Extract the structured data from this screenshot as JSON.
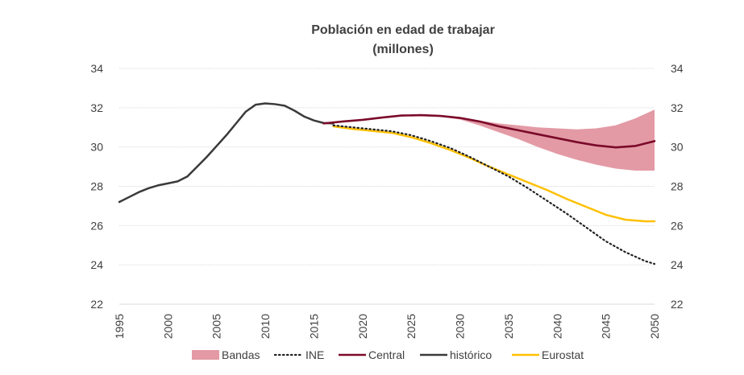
{
  "chart_data": {
    "type": "line",
    "title": "Población en edad de trabajar",
    "subtitle": "(millones)",
    "xlabel": "",
    "ylabel": "",
    "xlim": [
      1995,
      2050
    ],
    "ylim": [
      22,
      34
    ],
    "y_ticks": [
      22,
      24,
      26,
      28,
      30,
      32,
      34
    ],
    "x_ticks": [
      1995,
      2000,
      2005,
      2010,
      2015,
      2020,
      2025,
      2030,
      2035,
      2040,
      2045,
      2050
    ],
    "grid": true,
    "secondary_y_axis": true,
    "legend_position": "bottom",
    "legend": [
      "Bandas",
      "INE",
      "Central",
      "histórico",
      "Eurostat"
    ],
    "colors": {
      "bandas": "#e39aa5",
      "ine": "#222222",
      "central": "#7b0a2a",
      "historico": "#3a3a3a",
      "eurostat": "#ffc000",
      "grid": "#d9d9d9",
      "text": "#404040"
    },
    "series": [
      {
        "name": "histórico",
        "style": "solid",
        "x": [
          1995,
          1996,
          1997,
          1998,
          1999,
          2000,
          2001,
          2002,
          2003,
          2004,
          2005,
          2006,
          2007,
          2008,
          2009,
          2010,
          2011,
          2012,
          2013,
          2014,
          2015,
          2016,
          2017
        ],
        "values": [
          27.2,
          27.45,
          27.7,
          27.9,
          28.05,
          28.15,
          28.25,
          28.5,
          29.0,
          29.5,
          30.05,
          30.6,
          31.2,
          31.8,
          32.15,
          32.22,
          32.18,
          32.1,
          31.85,
          31.55,
          31.35,
          31.22,
          31.2
        ]
      },
      {
        "name": "Central",
        "style": "solid",
        "x": [
          2016,
          2018,
          2020,
          2022,
          2024,
          2026,
          2028,
          2030,
          2032,
          2034,
          2036,
          2038,
          2040,
          2042,
          2044,
          2046,
          2048,
          2050
        ],
        "values": [
          31.2,
          31.3,
          31.38,
          31.5,
          31.6,
          31.62,
          31.58,
          31.48,
          31.3,
          31.05,
          30.85,
          30.65,
          30.45,
          30.25,
          30.08,
          29.98,
          30.05,
          30.3
        ]
      },
      {
        "name": "INE",
        "style": "dotted",
        "x": [
          2017,
          2019,
          2021,
          2023,
          2025,
          2027,
          2029,
          2031,
          2033,
          2035,
          2037,
          2039,
          2041,
          2043,
          2045,
          2047,
          2049,
          2050
        ],
        "values": [
          31.1,
          31.0,
          30.9,
          30.8,
          30.6,
          30.3,
          29.95,
          29.5,
          29.0,
          28.5,
          27.9,
          27.25,
          26.6,
          25.9,
          25.2,
          24.65,
          24.2,
          24.05
        ]
      },
      {
        "name": "Eurostat",
        "style": "solid",
        "x": [
          2017,
          2019,
          2021,
          2023,
          2025,
          2027,
          2029,
          2031,
          2033,
          2035,
          2037,
          2039,
          2041,
          2043,
          2045,
          2047,
          2049,
          2050
        ],
        "values": [
          31.05,
          30.92,
          30.82,
          30.72,
          30.5,
          30.2,
          29.85,
          29.45,
          29.0,
          28.6,
          28.2,
          27.8,
          27.35,
          26.95,
          26.55,
          26.3,
          26.22,
          26.22
        ]
      },
      {
        "name": "Bandas",
        "style": "band",
        "x": [
          2028,
          2030,
          2032,
          2034,
          2036,
          2038,
          2040,
          2042,
          2044,
          2046,
          2048,
          2050
        ],
        "upper": [
          31.6,
          31.5,
          31.35,
          31.2,
          31.1,
          31.0,
          30.95,
          30.9,
          30.95,
          31.1,
          31.45,
          31.9
        ],
        "lower": [
          31.55,
          31.4,
          31.1,
          30.75,
          30.4,
          30.0,
          29.65,
          29.35,
          29.1,
          28.9,
          28.8,
          28.8
        ]
      }
    ]
  }
}
